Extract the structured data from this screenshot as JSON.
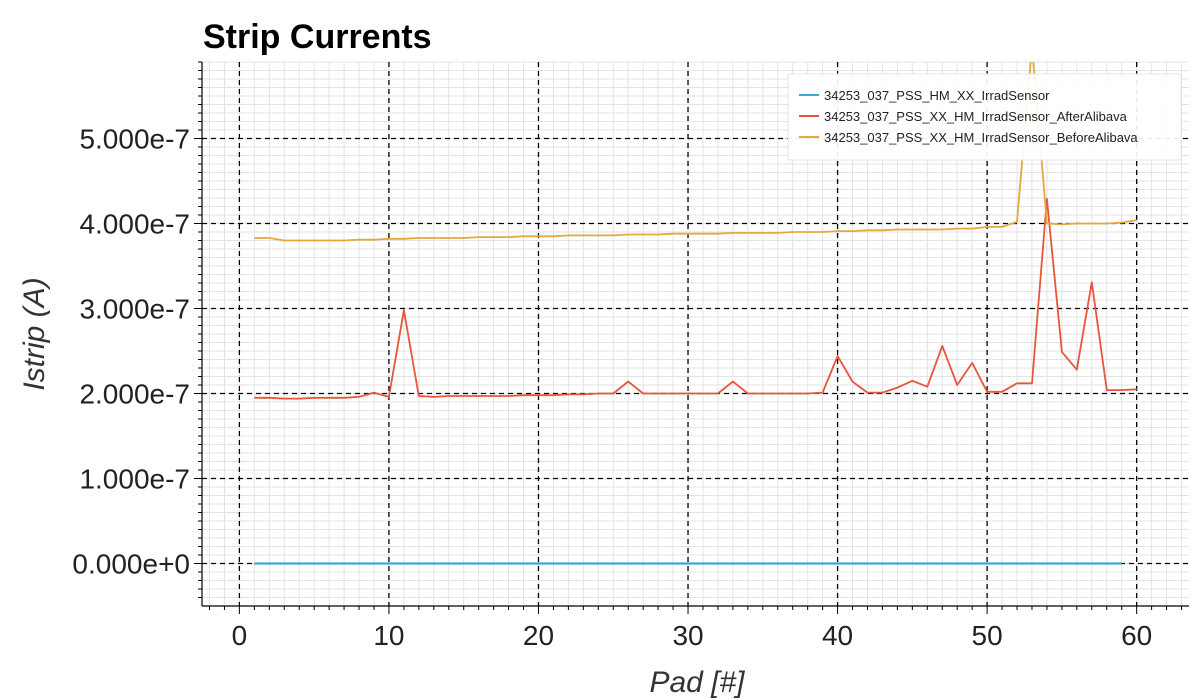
{
  "chart_data": {
    "type": "line",
    "title": "Strip Currents",
    "xlabel": "Pad [#]",
    "ylabel": "Istrip (A)",
    "xlim": [
      -2.5,
      63.5
    ],
    "ylim": [
      -5e-08,
      5.9e-07
    ],
    "x_ticks": [
      0,
      10,
      20,
      30,
      40,
      50,
      60
    ],
    "y_ticks": [
      0,
      1e-07,
      2e-07,
      3e-07,
      4e-07,
      5e-07
    ],
    "x_tick_labels": [
      "0",
      "10",
      "20",
      "30",
      "40",
      "50",
      "60"
    ],
    "y_tick_labels": [
      "0.000e+0",
      "1.000e-7",
      "2.000e-7",
      "3.000e-7",
      "4.000e-7",
      "5.000e-7"
    ],
    "grid": true,
    "legend_position": "top-right",
    "series": [
      {
        "name": "34253_037_PSS_HM_XX_IrradSensor",
        "color": "#3ea6d8",
        "x": [
          1,
          59
        ],
        "y": [
          0,
          0
        ]
      },
      {
        "name": "34253_037_PSS_XX_HM_IrradSensor_AfterAlibava",
        "color": "#e8553a",
        "x": [
          1,
          2,
          3,
          4,
          5,
          6,
          7,
          8,
          9,
          10,
          11,
          12,
          13,
          14,
          15,
          16,
          17,
          18,
          19,
          20,
          21,
          22,
          23,
          24,
          25,
          26,
          27,
          28,
          29,
          30,
          31,
          32,
          33,
          34,
          35,
          36,
          37,
          38,
          39,
          40,
          41,
          42,
          43,
          44,
          45,
          46,
          47,
          48,
          49,
          50,
          51,
          52,
          53,
          54,
          55,
          56,
          57,
          58,
          59,
          60
        ],
        "y": [
          1.95e-07,
          1.95e-07,
          1.94e-07,
          1.94e-07,
          1.95e-07,
          1.95e-07,
          1.95e-07,
          1.96e-07,
          2.01e-07,
          1.96e-07,
          2.98e-07,
          1.97e-07,
          1.96e-07,
          1.97e-07,
          1.97e-07,
          1.97e-07,
          1.97e-07,
          1.97e-07,
          1.98e-07,
          1.98e-07,
          1.98e-07,
          1.99e-07,
          1.99e-07,
          2e-07,
          2e-07,
          2.14e-07,
          2e-07,
          2e-07,
          2e-07,
          2e-07,
          2e-07,
          2e-07,
          2.14e-07,
          2e-07,
          2e-07,
          2e-07,
          2e-07,
          2e-07,
          2.01e-07,
          2.44e-07,
          2.14e-07,
          2.01e-07,
          2.01e-07,
          2.07e-07,
          2.15e-07,
          2.08e-07,
          2.56e-07,
          2.1e-07,
          2.36e-07,
          2.02e-07,
          2.02e-07,
          2.12e-07,
          2.12e-07,
          4.29e-07,
          2.49e-07,
          2.28e-07,
          3.31e-07,
          2.04e-07,
          2.04e-07,
          2.05e-07
        ]
      },
      {
        "name": "34253_037_PSS_XX_HM_IrradSensor_BeforeAlibava",
        "color": "#e2a93b",
        "x": [
          1,
          2,
          3,
          4,
          5,
          6,
          7,
          8,
          9,
          10,
          11,
          12,
          13,
          14,
          15,
          16,
          17,
          18,
          19,
          20,
          21,
          22,
          23,
          24,
          25,
          26,
          27,
          28,
          29,
          30,
          31,
          32,
          33,
          34,
          35,
          36,
          37,
          38,
          39,
          40,
          41,
          42,
          43,
          44,
          45,
          46,
          47,
          48,
          49,
          50,
          51,
          52,
          53,
          54,
          55,
          56,
          57,
          58,
          59,
          60
        ],
        "y": [
          3.83e-07,
          3.83e-07,
          3.8e-07,
          3.8e-07,
          3.8e-07,
          3.8e-07,
          3.8e-07,
          3.81e-07,
          3.81e-07,
          3.82e-07,
          3.82e-07,
          3.83e-07,
          3.83e-07,
          3.83e-07,
          3.83e-07,
          3.84e-07,
          3.84e-07,
          3.84e-07,
          3.85e-07,
          3.85e-07,
          3.85e-07,
          3.86e-07,
          3.86e-07,
          3.86e-07,
          3.86e-07,
          3.87e-07,
          3.87e-07,
          3.87e-07,
          3.88e-07,
          3.88e-07,
          3.88e-07,
          3.88e-07,
          3.89e-07,
          3.89e-07,
          3.89e-07,
          3.89e-07,
          3.9e-07,
          3.9e-07,
          3.9e-07,
          3.91e-07,
          3.91e-07,
          3.92e-07,
          3.92e-07,
          3.93e-07,
          3.93e-07,
          3.93e-07,
          3.93e-07,
          3.94e-07,
          3.94e-07,
          3.96e-07,
          3.96e-07,
          4.02e-07,
          6.1e-07,
          4e-07,
          3.99e-07,
          4e-07,
          4e-07,
          4e-07,
          4.01e-07,
          4.04e-07
        ]
      }
    ]
  }
}
